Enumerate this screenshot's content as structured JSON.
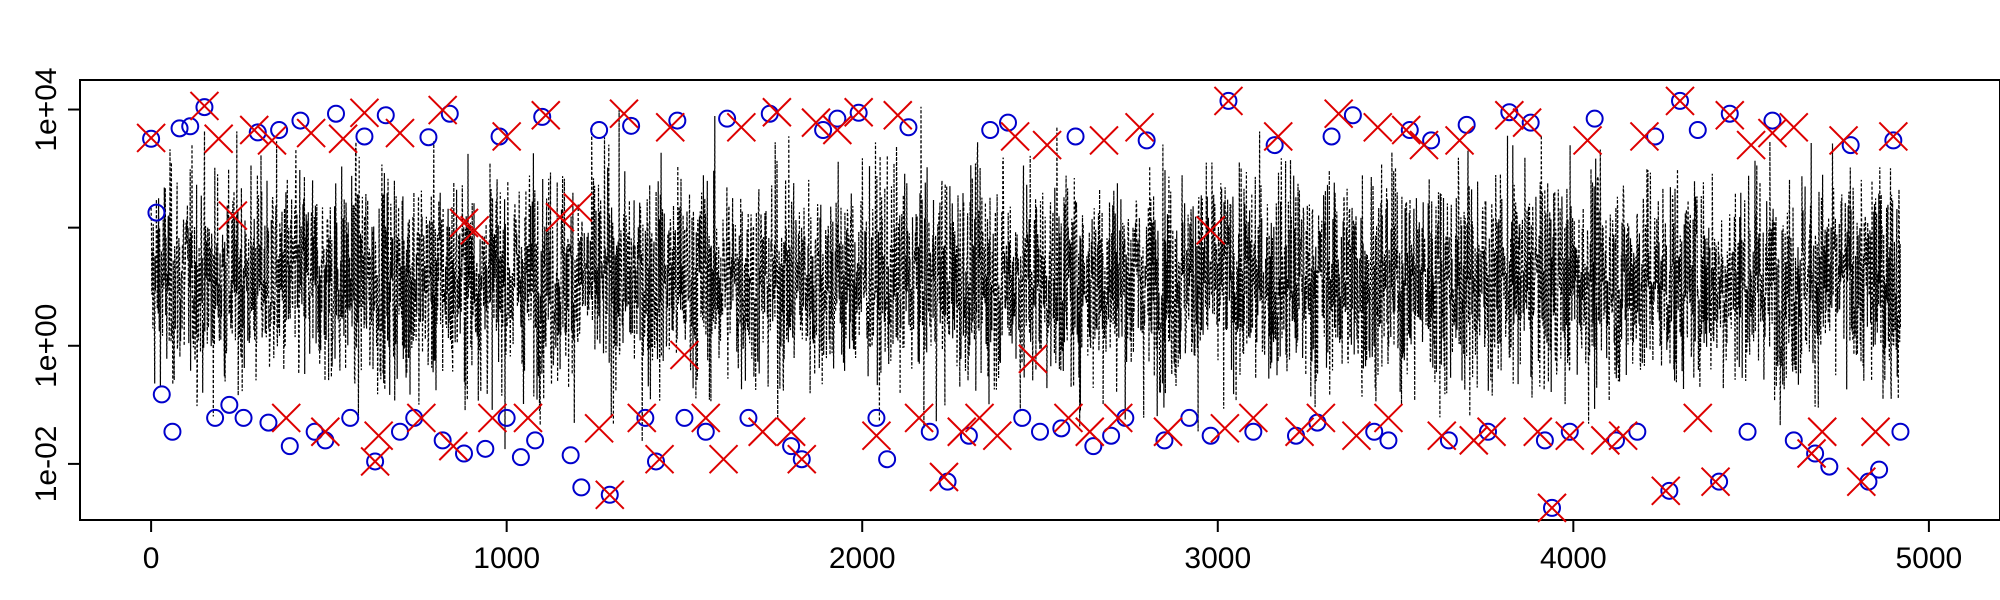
{
  "chart_data": {
    "type": "line",
    "title": "",
    "xlabel": "",
    "ylabel": "",
    "y_scale": "log10",
    "xlim": [
      -200,
      5200
    ],
    "ylim_log10": [
      -2.95,
      4.5
    ],
    "grid": false,
    "legend": "none",
    "x_ticks": [
      {
        "value": 0,
        "label": "0"
      },
      {
        "value": 1000,
        "label": "1000"
      },
      {
        "value": 2000,
        "label": "2000"
      },
      {
        "value": 3000,
        "label": "3000"
      },
      {
        "value": 4000,
        "label": "4000"
      },
      {
        "value": 5000,
        "label": "5000"
      }
    ],
    "y_ticks": [
      {
        "value": 0.01,
        "label": "1e-02"
      },
      {
        "value": 1,
        "label": "1e+00"
      },
      {
        "value": 100,
        "label": ""
      },
      {
        "value": 10000,
        "label": "1e+04"
      }
    ],
    "series": [
      {
        "style": "dotted-line",
        "color": "#000000",
        "n_points": 4920,
        "x_range": [
          0,
          4920
        ],
        "typical_range": [
          0.3,
          600
        ],
        "extreme_range": [
          0.005,
          16000
        ]
      },
      {
        "style": "circle-marker",
        "color": "#0000cc",
        "points": [
          [
            0,
            3200
          ],
          [
            15,
            180
          ],
          [
            30,
            0.15
          ],
          [
            60,
            0.035
          ],
          [
            80,
            4800
          ],
          [
            110,
            5200
          ],
          [
            150,
            11000
          ],
          [
            180,
            0.06
          ],
          [
            220,
            0.1
          ],
          [
            260,
            0.06
          ],
          [
            300,
            4100
          ],
          [
            330,
            0.05
          ],
          [
            360,
            4500
          ],
          [
            390,
            0.02
          ],
          [
            420,
            6500
          ],
          [
            460,
            0.035
          ],
          [
            490,
            0.025
          ],
          [
            520,
            8500
          ],
          [
            560,
            0.06
          ],
          [
            600,
            3500
          ],
          [
            630,
            0.011
          ],
          [
            660,
            8000
          ],
          [
            700,
            0.035
          ],
          [
            740,
            0.06
          ],
          [
            780,
            3400
          ],
          [
            820,
            0.025
          ],
          [
            840,
            8500
          ],
          [
            880,
            0.015
          ],
          [
            940,
            0.018
          ],
          [
            980,
            3500
          ],
          [
            1000,
            0.06
          ],
          [
            1040,
            0.013
          ],
          [
            1080,
            0.025
          ],
          [
            1100,
            7500
          ],
          [
            1180,
            0.014
          ],
          [
            1210,
            0.004
          ],
          [
            1260,
            4500
          ],
          [
            1290,
            0.003
          ],
          [
            1350,
            5300
          ],
          [
            1390,
            0.06
          ],
          [
            1420,
            0.011
          ],
          [
            1480,
            6500
          ],
          [
            1500,
            0.06
          ],
          [
            1560,
            0.035
          ],
          [
            1620,
            7000
          ],
          [
            1680,
            0.06
          ],
          [
            1740,
            8500
          ],
          [
            1800,
            0.02
          ],
          [
            1830,
            0.012
          ],
          [
            1890,
            4500
          ],
          [
            1930,
            7000
          ],
          [
            1990,
            8800
          ],
          [
            2040,
            0.06
          ],
          [
            2070,
            0.012
          ],
          [
            2130,
            5000
          ],
          [
            2190,
            0.035
          ],
          [
            2240,
            0.005
          ],
          [
            2300,
            0.03
          ],
          [
            2360,
            4500
          ],
          [
            2410,
            6000
          ],
          [
            2450,
            0.06
          ],
          [
            2500,
            0.035
          ],
          [
            2560,
            0.04
          ],
          [
            2600,
            3500
          ],
          [
            2650,
            0.02
          ],
          [
            2700,
            0.03
          ],
          [
            2740,
            0.06
          ],
          [
            2800,
            3000
          ],
          [
            2850,
            0.025
          ],
          [
            2920,
            0.06
          ],
          [
            2980,
            0.03
          ],
          [
            3030,
            14000
          ],
          [
            3100,
            0.035
          ],
          [
            3160,
            2500
          ],
          [
            3220,
            0.03
          ],
          [
            3280,
            0.05
          ],
          [
            3320,
            3500
          ],
          [
            3380,
            8000
          ],
          [
            3440,
            0.035
          ],
          [
            3480,
            0.025
          ],
          [
            3540,
            4500
          ],
          [
            3600,
            3000
          ],
          [
            3650,
            0.025
          ],
          [
            3700,
            5500
          ],
          [
            3760,
            0.035
          ],
          [
            3820,
            9000
          ],
          [
            3880,
            6000
          ],
          [
            3920,
            0.025
          ],
          [
            3940,
            0.0018
          ],
          [
            3990,
            0.035
          ],
          [
            4060,
            7000
          ],
          [
            4120,
            0.025
          ],
          [
            4180,
            0.035
          ],
          [
            4230,
            3500
          ],
          [
            4270,
            0.0035
          ],
          [
            4300,
            14000
          ],
          [
            4350,
            4500
          ],
          [
            4410,
            0.005
          ],
          [
            4440,
            8500
          ],
          [
            4490,
            0.035
          ],
          [
            4560,
            6500
          ],
          [
            4620,
            0.025
          ],
          [
            4680,
            0.015
          ],
          [
            4720,
            0.009
          ],
          [
            4780,
            2500
          ],
          [
            4830,
            0.005
          ],
          [
            4860,
            0.008
          ],
          [
            4900,
            3000
          ],
          [
            4920,
            0.035
          ]
        ]
      },
      {
        "style": "x-marker",
        "color": "#dd0000",
        "points": [
          [
            0,
            3300
          ],
          [
            150,
            11500
          ],
          [
            190,
            3200
          ],
          [
            230,
            160
          ],
          [
            290,
            4500
          ],
          [
            340,
            3000
          ],
          [
            380,
            0.06
          ],
          [
            450,
            4000
          ],
          [
            490,
            0.035
          ],
          [
            540,
            3200
          ],
          [
            600,
            8800
          ],
          [
            630,
            0.011
          ],
          [
            640,
            0.03
          ],
          [
            700,
            4000
          ],
          [
            760,
            0.06
          ],
          [
            820,
            9800
          ],
          [
            850,
            0.02
          ],
          [
            880,
            120
          ],
          [
            910,
            90
          ],
          [
            960,
            0.06
          ],
          [
            1000,
            3500
          ],
          [
            1060,
            0.06
          ],
          [
            1110,
            8000
          ],
          [
            1150,
            150
          ],
          [
            1200,
            220
          ],
          [
            1260,
            0.04
          ],
          [
            1290,
            0.003
          ],
          [
            1330,
            8500
          ],
          [
            1380,
            0.06
          ],
          [
            1430,
            0.012
          ],
          [
            1460,
            5000
          ],
          [
            1500,
            0.7
          ],
          [
            1560,
            0.06
          ],
          [
            1610,
            0.012
          ],
          [
            1660,
            5000
          ],
          [
            1720,
            0.035
          ],
          [
            1760,
            9000
          ],
          [
            1800,
            0.035
          ],
          [
            1830,
            0.012
          ],
          [
            1870,
            6000
          ],
          [
            1930,
            4500
          ],
          [
            1990,
            9000
          ],
          [
            2040,
            0.03
          ],
          [
            2100,
            8000
          ],
          [
            2160,
            0.06
          ],
          [
            2230,
            0.006
          ],
          [
            2280,
            0.035
          ],
          [
            2330,
            0.06
          ],
          [
            2380,
            0.03
          ],
          [
            2430,
            3500
          ],
          [
            2480,
            0.6
          ],
          [
            2520,
            2500
          ],
          [
            2580,
            0.06
          ],
          [
            2640,
            0.035
          ],
          [
            2680,
            3000
          ],
          [
            2720,
            0.06
          ],
          [
            2780,
            5000
          ],
          [
            2860,
            0.035
          ],
          [
            2980,
            90
          ],
          [
            3020,
            0.04
          ],
          [
            3030,
            14000
          ],
          [
            3100,
            0.06
          ],
          [
            3170,
            3500
          ],
          [
            3230,
            0.035
          ],
          [
            3290,
            0.06
          ],
          [
            3340,
            8500
          ],
          [
            3390,
            0.03
          ],
          [
            3450,
            5000
          ],
          [
            3480,
            0.06
          ],
          [
            3530,
            4500
          ],
          [
            3580,
            2500
          ],
          [
            3630,
            0.03
          ],
          [
            3680,
            3000
          ],
          [
            3720,
            0.025
          ],
          [
            3770,
            0.035
          ],
          [
            3820,
            8000
          ],
          [
            3870,
            6000
          ],
          [
            3900,
            0.035
          ],
          [
            3940,
            0.0018
          ],
          [
            3990,
            0.03
          ],
          [
            4040,
            3000
          ],
          [
            4090,
            0.025
          ],
          [
            4140,
            0.03
          ],
          [
            4200,
            3500
          ],
          [
            4260,
            0.0035
          ],
          [
            4300,
            14000
          ],
          [
            4350,
            0.06
          ],
          [
            4400,
            0.005
          ],
          [
            4440,
            8000
          ],
          [
            4500,
            2500
          ],
          [
            4560,
            4000
          ],
          [
            4620,
            5000
          ],
          [
            4670,
            0.015
          ],
          [
            4700,
            0.035
          ],
          [
            4760,
            3000
          ],
          [
            4810,
            0.005
          ],
          [
            4850,
            0.035
          ],
          [
            4900,
            3500
          ]
        ]
      }
    ]
  }
}
